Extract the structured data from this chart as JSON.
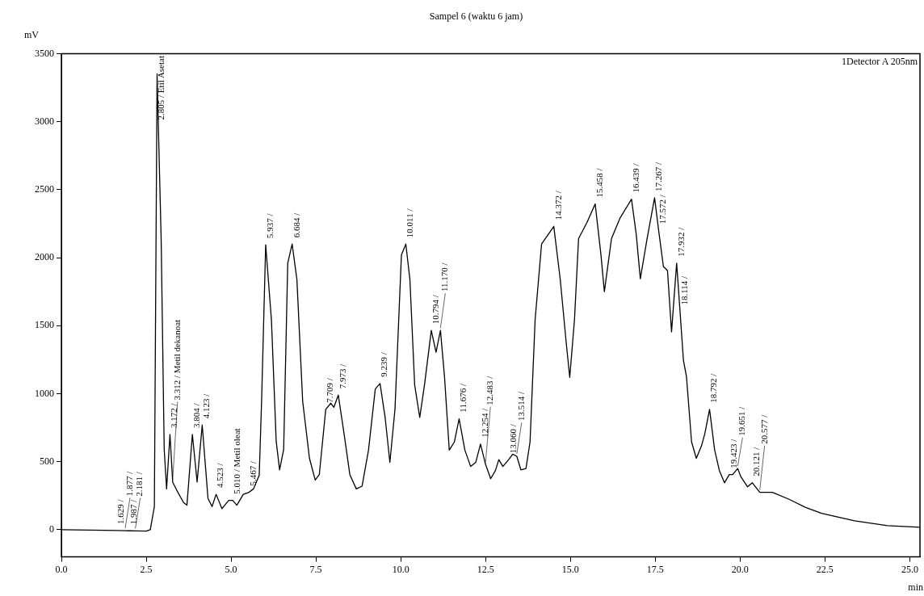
{
  "chart_data": {
    "type": "line",
    "title": "Sampel 6 (waktu 6 jam)",
    "xlabel": "min",
    "ylabel": "mV",
    "x": [
      0,
      1.63,
      1.88,
      1.99,
      2.18,
      2.5,
      2.62,
      2.74,
      2.82,
      2.94,
      3.03,
      3.1,
      3.2,
      3.28,
      3.4,
      3.6,
      3.7,
      3.86,
      4.0,
      4.15,
      4.32,
      4.44,
      4.56,
      4.73,
      4.93,
      5.05,
      5.17,
      5.36,
      5.53,
      5.66,
      5.83,
      5.9,
      6.02,
      6.19,
      6.33,
      6.43,
      6.55,
      6.67,
      6.8,
      6.94,
      7.11,
      7.31,
      7.48,
      7.6,
      7.79,
      7.94,
      8.03,
      8.16,
      8.33,
      8.5,
      8.69,
      8.86,
      9.05,
      9.25,
      9.39,
      9.54,
      9.68,
      9.83,
      10.02,
      10.15,
      10.27,
      10.41,
      10.56,
      10.7,
      10.9,
      11.04,
      11.17,
      11.29,
      11.43,
      11.58,
      11.72,
      11.89,
      12.06,
      12.21,
      12.35,
      12.5,
      12.65,
      12.79,
      12.89,
      13.01,
      13.18,
      13.3,
      13.42,
      13.54,
      13.69,
      13.81,
      13.96,
      14.15,
      14.51,
      14.7,
      14.88,
      14.98,
      15.12,
      15.24,
      15.49,
      15.73,
      15.9,
      16.0,
      16.21,
      16.46,
      16.8,
      16.94,
      17.06,
      17.26,
      17.48,
      17.6,
      17.74,
      17.86,
      17.98,
      18.13,
      18.23,
      18.33,
      18.42,
      18.57,
      18.71,
      18.86,
      18.96,
      19.1,
      19.25,
      19.39,
      19.54,
      19.68,
      19.78,
      19.93,
      20.02,
      20.22,
      20.36,
      20.58,
      20.95,
      21.43,
      21.92,
      22.4,
      23.37,
      24.34,
      25.3
    ],
    "series": [
      {
        "color": "#000000",
        "values": [
          0,
          -6,
          -7,
          -8,
          -9,
          -10,
          0,
          170,
          3350,
          2140,
          590,
          300,
          700,
          350,
          290,
          200,
          180,
          700,
          350,
          770,
          230,
          170,
          260,
          155,
          215,
          215,
          180,
          260,
          275,
          300,
          400,
          950,
          2095,
          1540,
          650,
          440,
          590,
          1960,
          2100,
          1840,
          945,
          525,
          365,
          405,
          885,
          930,
          900,
          990,
          705,
          405,
          300,
          320,
          585,
          1035,
          1075,
          825,
          495,
          885,
          2020,
          2100,
          1840,
          1065,
          825,
          1065,
          1465,
          1305,
          1465,
          1125,
          585,
          645,
          815,
          585,
          465,
          495,
          630,
          480,
          375,
          435,
          515,
          465,
          515,
          555,
          540,
          440,
          450,
          645,
          1545,
          2100,
          2230,
          1840,
          1365,
          1120,
          1545,
          2140,
          2260,
          2395,
          2020,
          1750,
          2140,
          2290,
          2430,
          2170,
          1845,
          2140,
          2440,
          2200,
          1935,
          1905,
          1455,
          1960,
          1605,
          1245,
          1125,
          645,
          525,
          615,
          705,
          885,
          585,
          435,
          345,
          405,
          405,
          450,
          390,
          315,
          345,
          275,
          275,
          225,
          165,
          120,
          65,
          30,
          18
        ]
      }
    ],
    "xlim": [
      0,
      25.3
    ],
    "xticks": [
      {
        "value": 0,
        "label": "0.0"
      },
      2.5,
      {
        "value": 5,
        "label": "5.0"
      },
      7.5,
      {
        "value": 10,
        "label": "10.0"
      },
      12.5,
      {
        "value": 15,
        "label": "15.0"
      },
      17.5,
      {
        "value": 20,
        "label": "20.0"
      },
      22.5,
      {
        "value": 25,
        "label": "25.0"
      }
    ],
    "ylim": [
      -200,
      3500
    ],
    "yticks": [
      0,
      500,
      1000,
      1500,
      2000,
      2500,
      3000,
      3500
    ],
    "grid": false,
    "legend": false,
    "marker": "none",
    "line_style": "solid",
    "annotations": [
      "1Detector A 205nm",
      {
        "text": "1.629 /",
        "x": 1.63,
        "y": -6
      },
      {
        "text": "1.877 /",
        "x": 1.88,
        "y": -7
      },
      {
        "text": "1.987 /",
        "x": 1.99,
        "y": -8
      },
      {
        "text": "2.181 /",
        "x": 2.18,
        "y": -9
      },
      {
        "text": "2.805 / Etil Asetat",
        "x": 2.82,
        "y": 3350
      },
      {
        "text": "3.172 /",
        "x": 3.2,
        "y": 700
      },
      {
        "text": "3.312 / Metil dekanoat",
        "x": 3.28,
        "y": 350
      },
      {
        "text": "3.804 /",
        "x": 3.86,
        "y": 700
      },
      {
        "text": "4.123 /",
        "x": 4.15,
        "y": 770
      },
      {
        "text": "4.523 /",
        "x": 4.56,
        "y": 260
      },
      {
        "text": "5.010 / Metil oleat",
        "x": 5.05,
        "y": 215
      },
      {
        "text": "5.467 /",
        "x": 5.53,
        "y": 275
      },
      {
        "text": "5.937 /",
        "x": 6.02,
        "y": 2095
      },
      {
        "text": "6.684 /",
        "x": 6.8,
        "y": 2100
      },
      {
        "text": "7.709 /",
        "x": 7.79,
        "y": 885
      },
      {
        "text": "7.973 /",
        "x": 8.16,
        "y": 990
      },
      {
        "text": "9.239 /",
        "x": 9.39,
        "y": 1075
      },
      {
        "text": "10.011 /",
        "x": 10.15,
        "y": 2100
      },
      {
        "text": "10.794 /",
        "x": 10.9,
        "y": 1465
      },
      {
        "text": "11.170 /",
        "x": 11.17,
        "y": 1465
      },
      {
        "text": "11.676 /",
        "x": 11.72,
        "y": 815
      },
      {
        "text": "12.254 /",
        "x": 12.35,
        "y": 630
      },
      {
        "text": "12.483 /",
        "x": 12.5,
        "y": 480
      },
      {
        "text": "13.060 /",
        "x": 13.18,
        "y": 515
      },
      {
        "text": "13.514 /",
        "x": 13.42,
        "y": 540
      },
      {
        "text": "14.372 /",
        "x": 14.51,
        "y": 2230
      },
      {
        "text": "15.458 /",
        "x": 15.73,
        "y": 2395
      },
      {
        "text": "16.439 /",
        "x": 16.8,
        "y": 2430
      },
      {
        "text": "17.267 /",
        "x": 17.48,
        "y": 2440
      },
      {
        "text": "17.572 /",
        "x": 17.6,
        "y": 2200
      },
      {
        "text": "17.932 /",
        "x": 18.13,
        "y": 1960
      },
      {
        "text": "18.114 /",
        "x": 18.23,
        "y": 1605
      },
      {
        "text": "18.792 /",
        "x": 19.1,
        "y": 885
      },
      {
        "text": "19.423 /",
        "x": 19.68,
        "y": 405
      },
      {
        "text": "19.651 /",
        "x": 19.93,
        "y": 450
      },
      {
        "text": "20.121 /",
        "x": 20.36,
        "y": 345
      },
      {
        "text": "20.577 /",
        "x": 20.58,
        "y": 275
      }
    ]
  }
}
